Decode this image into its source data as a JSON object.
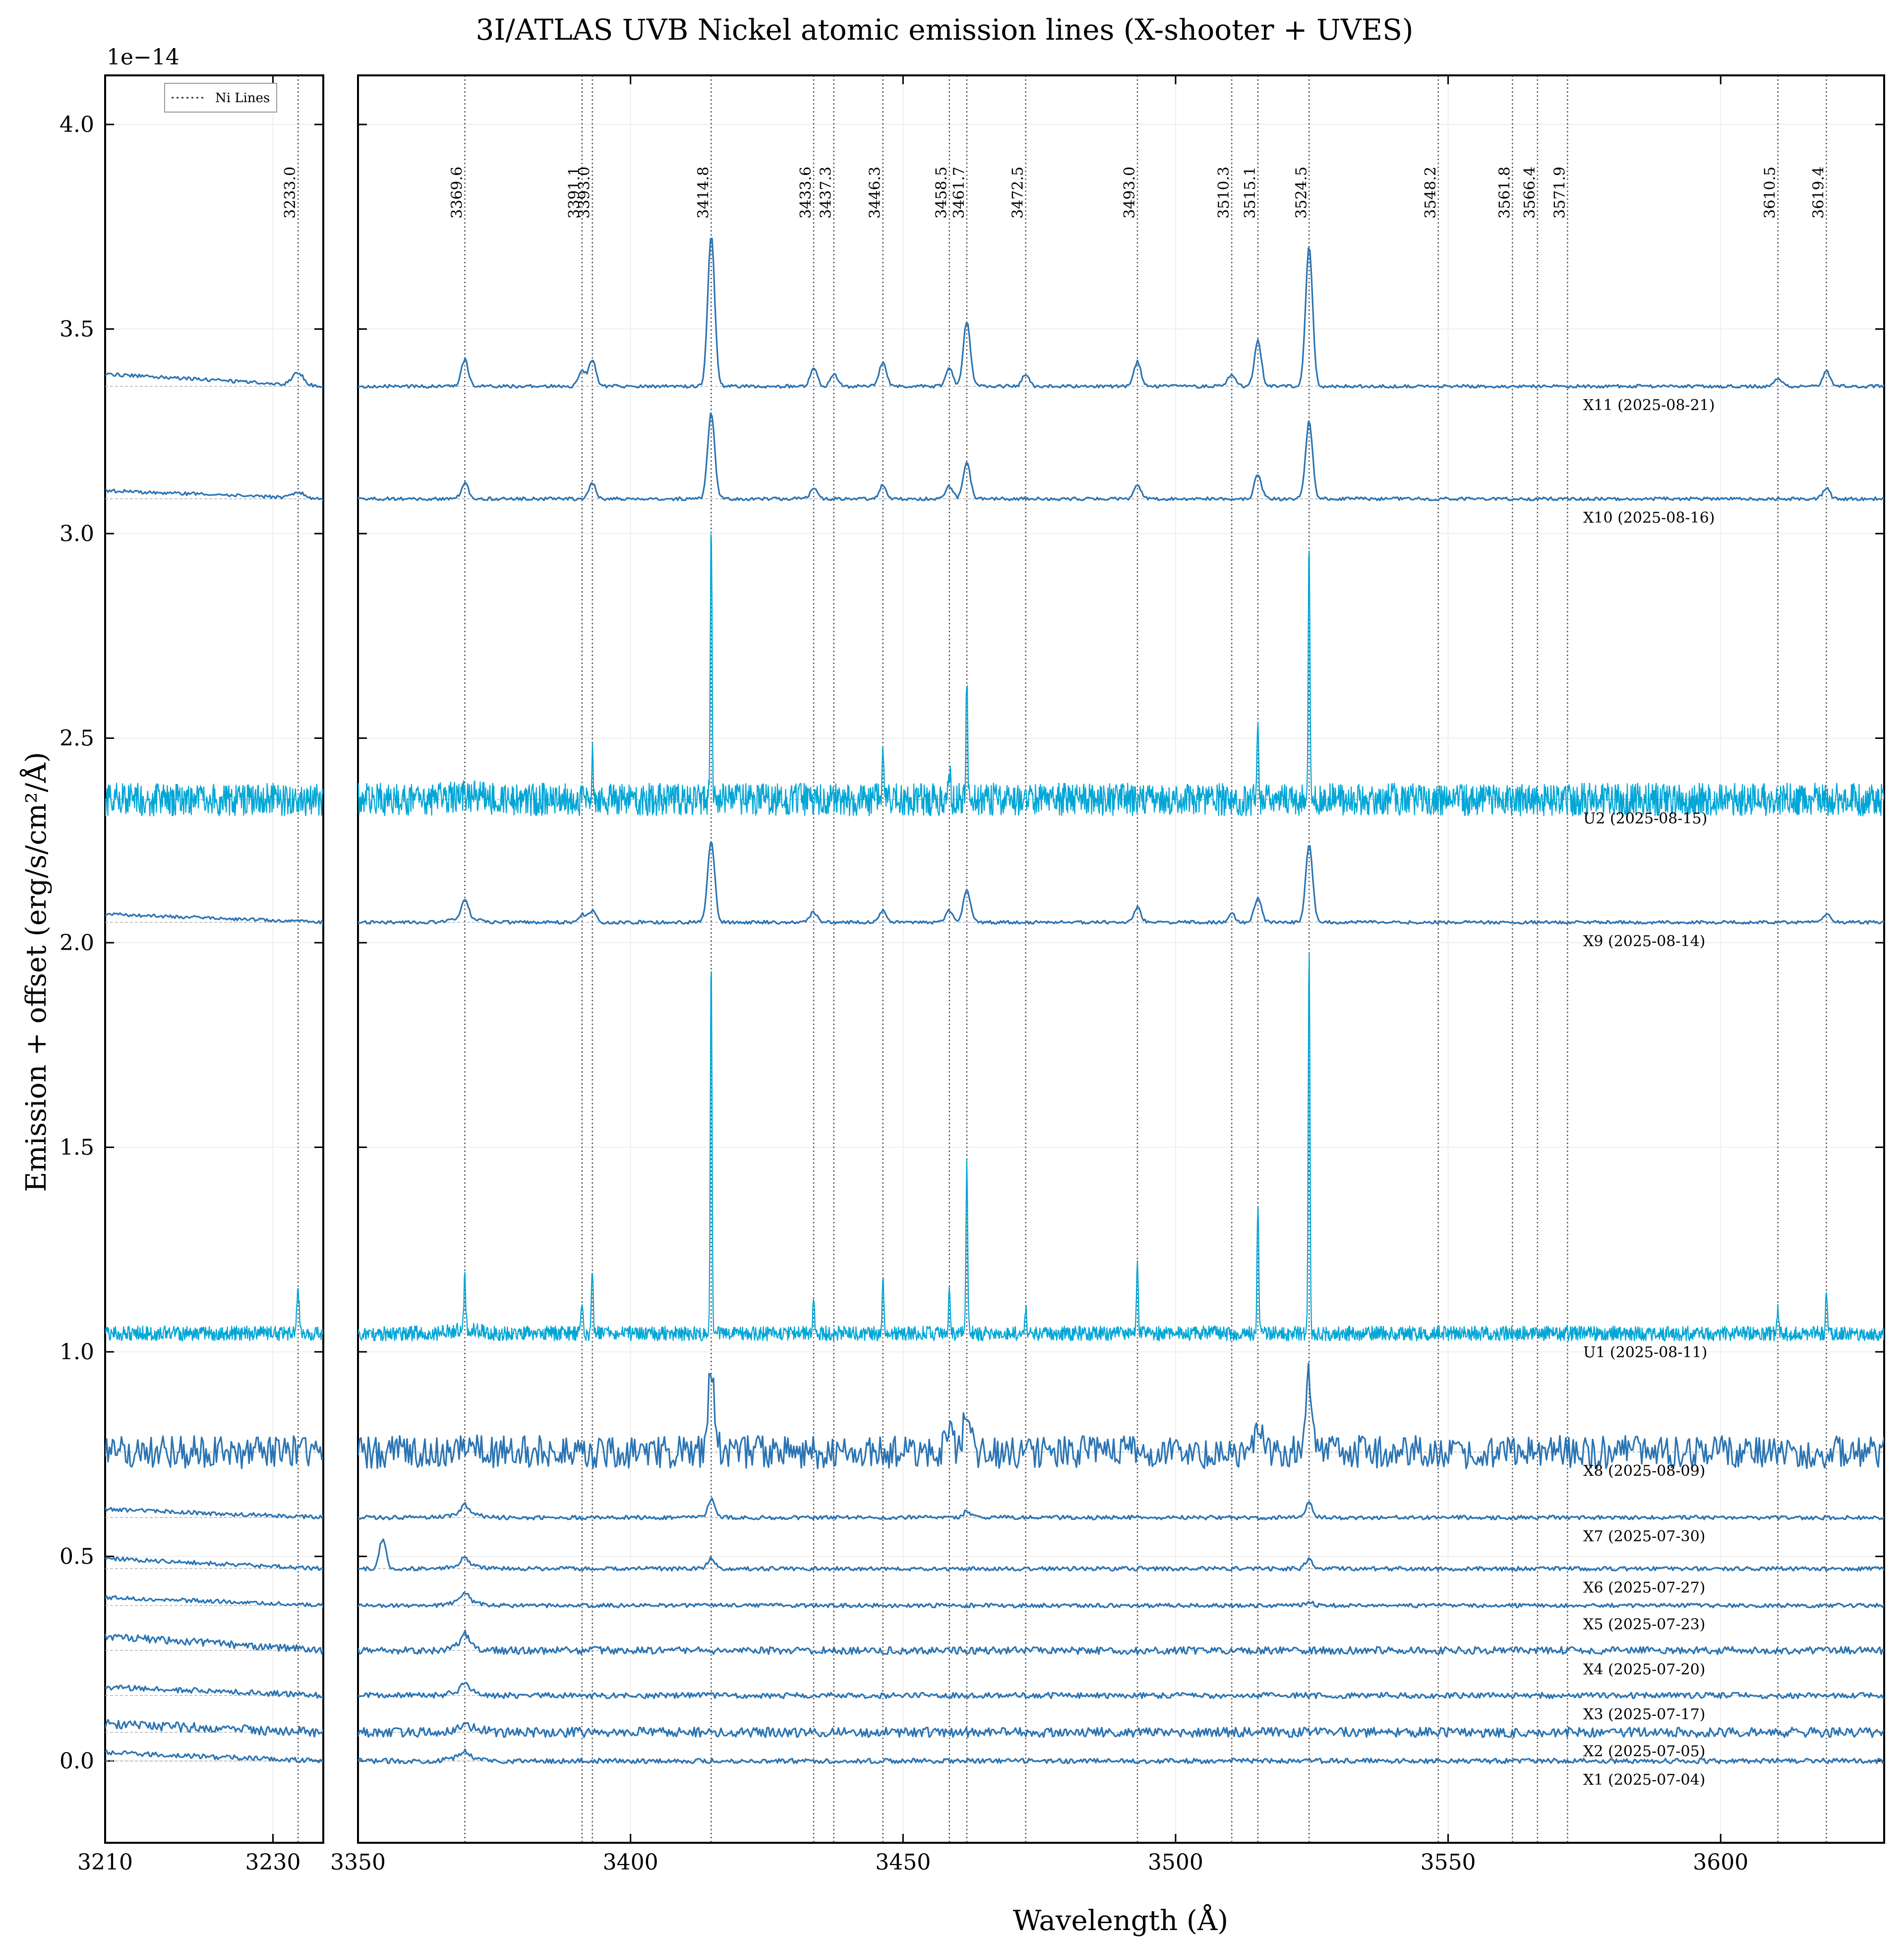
{
  "chart_data": {
    "type": "line",
    "title": "3I/ATLAS UVB Nickel atomic emission lines (X-shooter + UVES)",
    "xlabel": "Wavelength (Å)",
    "ylabel": "Emission + offset (erg/s/cm²/Å)",
    "y_multiplier": "1e−14",
    "ylim": [
      -0.2,
      4.12
    ],
    "yticks": [
      "0.0",
      "0.5",
      "1.0",
      "1.5",
      "2.0",
      "2.5",
      "3.0",
      "3.5",
      "4.0"
    ],
    "panels": [
      {
        "xlim": [
          3210,
          3236
        ],
        "xticks": [
          "3210",
          "3230"
        ],
        "ni_lines": [
          3233.0
        ]
      },
      {
        "xlim": [
          3350,
          3630
        ],
        "xticks": [
          "3350",
          "3400",
          "3450",
          "3500",
          "3550",
          "3600"
        ],
        "ni_lines": [
          3369.6,
          3391.1,
          3393.0,
          3414.8,
          3433.6,
          3437.3,
          3446.3,
          3458.5,
          3461.7,
          3472.5,
          3493.0,
          3510.3,
          3515.1,
          3524.5,
          3548.2,
          3561.8,
          3566.4,
          3571.9,
          3610.5,
          3619.4
        ]
      }
    ],
    "legend": {
      "label": "Ni Lines",
      "placement": "top-right of left panel"
    },
    "colors": {
      "xshooter": "#2a74b3",
      "uves": "#00a6d6",
      "ni_line": "#555555",
      "baseline": "#b0b0b0"
    },
    "series": [
      {
        "name": "X1 (2025-07-04)",
        "instrument": "X-shooter",
        "baseline": 0.0,
        "noise": 0.006,
        "left_trend": 0.02,
        "peaks": [
          [
            3369.6,
            0.012
          ]
        ]
      },
      {
        "name": "X2 (2025-07-05)",
        "instrument": "X-shooter",
        "baseline": 0.07,
        "noise": 0.012,
        "left_trend": 0.02,
        "peaks": [
          [
            3369.6,
            0.015
          ]
        ]
      },
      {
        "name": "X3 (2025-07-17)",
        "instrument": "X-shooter",
        "baseline": 0.16,
        "noise": 0.007,
        "left_trend": 0.02,
        "peaks": [
          [
            3369.6,
            0.018
          ]
        ]
      },
      {
        "name": "X4 (2025-07-20)",
        "instrument": "X-shooter",
        "baseline": 0.27,
        "noise": 0.009,
        "left_trend": 0.035,
        "peaks": [
          [
            3369.6,
            0.03
          ]
        ]
      },
      {
        "name": "X5 (2025-07-23)",
        "instrument": "X-shooter",
        "baseline": 0.38,
        "noise": 0.005,
        "left_trend": 0.02,
        "peaks": [
          [
            3369.6,
            0.02
          ],
          [
            3524.5,
            0.01
          ]
        ]
      },
      {
        "name": "X6 (2025-07-27)",
        "instrument": "X-shooter",
        "baseline": 0.47,
        "noise": 0.005,
        "left_trend": 0.025,
        "peaks": [
          [
            3354.5,
            0.07
          ],
          [
            3369.6,
            0.015
          ],
          [
            3414.8,
            0.025
          ],
          [
            3524.5,
            0.025
          ]
        ]
      },
      {
        "name": "X7 (2025-07-30)",
        "instrument": "X-shooter",
        "baseline": 0.595,
        "noise": 0.005,
        "left_trend": 0.02,
        "peaks": [
          [
            3369.6,
            0.02
          ],
          [
            3414.8,
            0.045
          ],
          [
            3461.7,
            0.015
          ],
          [
            3524.5,
            0.035
          ]
        ]
      },
      {
        "name": "X8 (2025-08-09)",
        "instrument": "X-shooter",
        "baseline": 0.755,
        "noise": 0.04,
        "left_trend": 0.0,
        "peaks": [
          [
            3414.8,
            0.19
          ],
          [
            3461.7,
            0.1
          ],
          [
            3515.1,
            0.08
          ],
          [
            3524.5,
            0.18
          ],
          [
            3458.5,
            0.05
          ]
        ]
      },
      {
        "name": "U1 (2025-08-11)",
        "instrument": "UVES",
        "baseline": 1.045,
        "noise": 0.018,
        "left_trend": 0.0,
        "peaks": [
          [
            3369.6,
            0.13
          ],
          [
            3391.1,
            0.08
          ],
          [
            3393.0,
            0.16
          ],
          [
            3414.8,
            0.92
          ],
          [
            3433.6,
            0.1
          ],
          [
            3446.3,
            0.13
          ],
          [
            3458.5,
            0.12
          ],
          [
            3461.7,
            0.43
          ],
          [
            3472.5,
            0.06
          ],
          [
            3493.0,
            0.17
          ],
          [
            3515.1,
            0.32
          ],
          [
            3524.5,
            0.95
          ],
          [
            3610.5,
            0.06
          ],
          [
            3619.4,
            0.11
          ],
          [
            3233.0,
            0.1
          ]
        ]
      },
      {
        "name": "X9 (2025-08-14)",
        "instrument": "X-shooter",
        "baseline": 2.05,
        "noise": 0.004,
        "left_trend": 0.02,
        "peaks": [
          [
            3369.6,
            0.04
          ],
          [
            3391.1,
            0.02
          ],
          [
            3393.0,
            0.03
          ],
          [
            3414.8,
            0.2
          ],
          [
            3433.6,
            0.025
          ],
          [
            3446.3,
            0.03
          ],
          [
            3458.5,
            0.03
          ],
          [
            3461.7,
            0.08
          ],
          [
            3493.0,
            0.035
          ],
          [
            3510.3,
            0.02
          ],
          [
            3515.1,
            0.06
          ],
          [
            3524.5,
            0.19
          ],
          [
            3619.4,
            0.02
          ]
        ]
      },
      {
        "name": "U2 (2025-08-15)",
        "instrument": "UVES",
        "baseline": 2.35,
        "noise": 0.04,
        "left_trend": 0.0,
        "peaks": [
          [
            3414.8,
            0.7
          ],
          [
            3461.7,
            0.31
          ],
          [
            3515.1,
            0.2
          ],
          [
            3524.5,
            0.63
          ],
          [
            3446.3,
            0.1
          ],
          [
            3458.5,
            0.09
          ],
          [
            3393.0,
            0.1
          ]
        ]
      },
      {
        "name": "X10 (2025-08-16)",
        "instrument": "X-shooter",
        "baseline": 3.085,
        "noise": 0.004,
        "left_trend": 0.02,
        "peaks": [
          [
            3369.6,
            0.04
          ],
          [
            3393.0,
            0.04
          ],
          [
            3414.8,
            0.21
          ],
          [
            3433.6,
            0.025
          ],
          [
            3446.3,
            0.035
          ],
          [
            3458.5,
            0.03
          ],
          [
            3461.7,
            0.09
          ],
          [
            3493.0,
            0.035
          ],
          [
            3515.1,
            0.06
          ],
          [
            3524.5,
            0.19
          ],
          [
            3619.4,
            0.025
          ],
          [
            3233.0,
            0.015
          ]
        ]
      },
      {
        "name": "X11 (2025-08-21)",
        "instrument": "X-shooter",
        "baseline": 3.36,
        "noise": 0.004,
        "left_trend": 0.03,
        "peaks": [
          [
            3369.6,
            0.065
          ],
          [
            3391.1,
            0.04
          ],
          [
            3393.0,
            0.065
          ],
          [
            3414.8,
            0.37
          ],
          [
            3433.6,
            0.045
          ],
          [
            3437.3,
            0.03
          ],
          [
            3446.3,
            0.06
          ],
          [
            3458.5,
            0.045
          ],
          [
            3461.7,
            0.16
          ],
          [
            3472.5,
            0.03
          ],
          [
            3493.0,
            0.06
          ],
          [
            3510.3,
            0.03
          ],
          [
            3515.1,
            0.11
          ],
          [
            3524.5,
            0.34
          ],
          [
            3610.5,
            0.02
          ],
          [
            3619.4,
            0.04
          ],
          [
            3233.0,
            0.03
          ]
        ]
      }
    ],
    "grid": true
  }
}
